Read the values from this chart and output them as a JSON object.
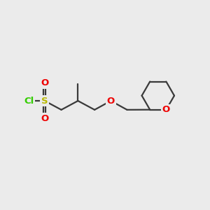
{
  "bg_color": "#ebebeb",
  "bond_color": "#3a3a3a",
  "bond_width": 1.6,
  "S_color": "#b8b800",
  "O_color": "#ee0000",
  "Cl_color": "#33cc00",
  "font_size": 9.5,
  "figsize": [
    3.0,
    3.0
  ],
  "dpi": 100,
  "xlim": [
    0,
    10
  ],
  "ylim": [
    0,
    10
  ]
}
